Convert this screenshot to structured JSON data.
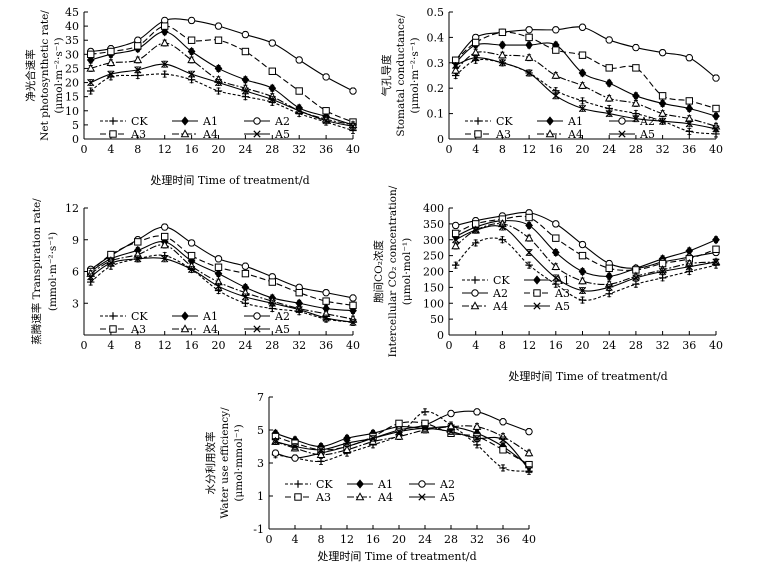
{
  "figure": {
    "xlabel_p1": "处理时间 Time of treatment/d",
    "xlabel_p3": "处理时间 Time of treatment/d",
    "xlabel_p5": "处理时间 Time of treatment/d"
  },
  "colors": {
    "ink": "#000000",
    "background": "#ffffff"
  },
  "chart_data": [
    {
      "type": "line",
      "title": "",
      "ylabel_lines": [
        "净光合速率",
        "Net photosynthetic rate/",
        "(μmol·m⁻²·s⁻¹)"
      ],
      "xlabel": "处理时间 Time of treatment/d",
      "x": [
        1,
        4,
        8,
        12,
        16,
        20,
        24,
        28,
        32,
        36,
        40
      ],
      "xticks": [
        0,
        4,
        8,
        12,
        16,
        20,
        24,
        28,
        32,
        36,
        40
      ],
      "xlim": [
        0,
        40
      ],
      "ylim": [
        0,
        45
      ],
      "yticks": [
        0,
        5,
        10,
        15,
        20,
        25,
        30,
        35,
        40,
        45
      ],
      "legend_layout": [
        [
          "CK",
          "A1",
          "A2"
        ],
        [
          "A3",
          "A4",
          "A5"
        ]
      ],
      "series": [
        {
          "name": "CK",
          "values": [
            17,
            22,
            22.5,
            23,
            21,
            17,
            15,
            13,
            9,
            6,
            3
          ]
        },
        {
          "name": "A1",
          "values": [
            28,
            30,
            32,
            38,
            31,
            25,
            21,
            18,
            11,
            8,
            5
          ]
        },
        {
          "name": "A2",
          "values": [
            31,
            32,
            35,
            42,
            42,
            40,
            37,
            34,
            28,
            22,
            17
          ]
        },
        {
          "name": "A3",
          "values": [
            30,
            31,
            33,
            40,
            35,
            35,
            31,
            24,
            17,
            10,
            6
          ]
        },
        {
          "name": "A4",
          "values": [
            25,
            27,
            28,
            34,
            28,
            21,
            18,
            15,
            10,
            7,
            5
          ]
        },
        {
          "name": "A5",
          "values": [
            20,
            23,
            24.5,
            26.5,
            23,
            20,
            17,
            14,
            10,
            6.5,
            4.5
          ]
        }
      ]
    },
    {
      "type": "line",
      "title": "",
      "ylabel_lines": [
        "气孔导度",
        "Stomatal conductance/",
        "(μmol·m⁻²·s⁻¹)"
      ],
      "xlabel": "",
      "x": [
        1,
        4,
        8,
        12,
        16,
        20,
        24,
        28,
        32,
        36,
        40
      ],
      "xticks": [
        0,
        4,
        8,
        12,
        16,
        20,
        24,
        28,
        32,
        36,
        40
      ],
      "xlim": [
        0,
        40
      ],
      "ylim": [
        0,
        0.5
      ],
      "yticks": [
        0,
        0.1,
        0.2,
        0.3,
        0.4,
        0.5
      ],
      "legend_layout": [
        [
          "CK",
          "A1",
          "A2"
        ],
        [
          "A3",
          "A4",
          "A5"
        ]
      ],
      "series": [
        {
          "name": "CK",
          "values": [
            0.25,
            0.31,
            0.3,
            0.26,
            0.19,
            0.15,
            0.12,
            0.1,
            0.07,
            0.03,
            0.02
          ]
        },
        {
          "name": "A1",
          "values": [
            0.3,
            0.37,
            0.37,
            0.37,
            0.37,
            0.26,
            0.22,
            0.17,
            0.14,
            0.12,
            0.09
          ]
        },
        {
          "name": "A2",
          "values": [
            0.31,
            0.4,
            0.42,
            0.43,
            0.43,
            0.44,
            0.39,
            0.36,
            0.34,
            0.32,
            0.24
          ]
        },
        {
          "name": "A3",
          "values": [
            0.31,
            0.38,
            0.42,
            0.4,
            0.35,
            0.33,
            0.28,
            0.28,
            0.17,
            0.15,
            0.12
          ]
        },
        {
          "name": "A4",
          "values": [
            0.27,
            0.34,
            0.33,
            0.32,
            0.25,
            0.21,
            0.16,
            0.14,
            0.1,
            0.08,
            0.05
          ]
        },
        {
          "name": "A5",
          "values": [
            0.29,
            0.32,
            0.3,
            0.26,
            0.17,
            0.12,
            0.1,
            0.08,
            0.07,
            0.06,
            0.04
          ]
        }
      ]
    },
    {
      "type": "line",
      "title": "",
      "ylabel_lines": [
        "蒸腾速率 Transpiration rate/",
        "(mmol·m⁻²·s⁻¹)"
      ],
      "xlabel": "处理时间 Time of treatment/d",
      "x": [
        1,
        4,
        8,
        12,
        16,
        20,
        24,
        28,
        32,
        36,
        40
      ],
      "xticks": [
        0,
        4,
        8,
        12,
        16,
        20,
        24,
        28,
        32,
        36,
        40
      ],
      "xlim": [
        0,
        40
      ],
      "ylim": [
        0,
        12
      ],
      "yticks": [
        3,
        6,
        9,
        12
      ],
      "legend_layout": [
        [
          "CK",
          "A1",
          "A2"
        ],
        [
          "A3",
          "A4",
          "A5"
        ]
      ],
      "series": [
        {
          "name": "CK",
          "values": [
            5.0,
            6.5,
            7.2,
            7.5,
            6.2,
            4.2,
            3.0,
            2.5,
            2.2,
            1.5,
            1.2
          ]
        },
        {
          "name": "A1",
          "values": [
            6.0,
            7.2,
            8.0,
            8.8,
            7.0,
            5.8,
            4.5,
            3.5,
            3.0,
            2.5,
            2.3
          ]
        },
        {
          "name": "A2",
          "values": [
            6.2,
            7.5,
            9.0,
            10.2,
            8.7,
            7.2,
            6.5,
            5.5,
            4.5,
            4.0,
            3.5
          ]
        },
        {
          "name": "A3",
          "values": [
            6.0,
            7.6,
            8.8,
            9.3,
            7.5,
            6.4,
            5.8,
            5.0,
            4.0,
            3.2,
            2.8
          ]
        },
        {
          "name": "A4",
          "values": [
            5.8,
            7.0,
            7.6,
            8.5,
            6.5,
            5.0,
            4.0,
            3.2,
            2.5,
            2.0,
            1.5
          ]
        },
        {
          "name": "A5",
          "values": [
            5.5,
            6.8,
            7.2,
            7.2,
            6.2,
            4.6,
            3.6,
            3.0,
            2.4,
            1.6,
            1.2
          ]
        }
      ]
    },
    {
      "type": "line",
      "title": "",
      "ylabel_lines": [
        "胞间CO₂浓度",
        "Intercellular CO₂ concentration/",
        "(μmol·mol⁻¹)"
      ],
      "xlabel": "",
      "x": [
        1,
        4,
        8,
        12,
        16,
        20,
        24,
        28,
        32,
        36,
        40
      ],
      "xticks": [
        0,
        4,
        8,
        12,
        16,
        20,
        24,
        28,
        32,
        36,
        40
      ],
      "xlim": [
        0,
        40
      ],
      "ylim": [
        0,
        400
      ],
      "yticks": [
        0,
        50,
        100,
        150,
        200,
        250,
        300,
        350,
        400
      ],
      "legend_layout": [
        [
          "CK",
          "A1"
        ],
        [
          "A2",
          "A3"
        ],
        [
          "A4",
          "A5"
        ]
      ],
      "series": [
        {
          "name": "CK",
          "values": [
            220,
            290,
            300,
            220,
            160,
            110,
            130,
            160,
            180,
            200,
            220
          ]
        },
        {
          "name": "A1",
          "values": [
            310,
            340,
            360,
            345,
            260,
            200,
            185,
            210,
            240,
            265,
            300
          ]
        },
        {
          "name": "A2",
          "values": [
            345,
            360,
            375,
            385,
            350,
            285,
            225,
            210,
            230,
            245,
            260
          ]
        },
        {
          "name": "A3",
          "values": [
            320,
            350,
            365,
            370,
            305,
            250,
            210,
            205,
            225,
            240,
            270
          ]
        },
        {
          "name": "A4",
          "values": [
            280,
            330,
            350,
            305,
            215,
            170,
            160,
            185,
            205,
            225,
            230
          ]
        },
        {
          "name": "A5",
          "values": [
            300,
            330,
            340,
            260,
            180,
            140,
            150,
            180,
            200,
            215,
            230
          ]
        }
      ]
    },
    {
      "type": "line",
      "title": "",
      "ylabel_lines": [
        "水分利用效率",
        "Water use efficiency/",
        "(μmol·mmol⁻¹)"
      ],
      "xlabel": "处理时间 Time of treatment/d",
      "x": [
        1,
        4,
        8,
        12,
        16,
        20,
        24,
        28,
        32,
        36,
        40
      ],
      "xticks": [
        0,
        4,
        8,
        12,
        16,
        20,
        24,
        28,
        32,
        36,
        40
      ],
      "xlim": [
        0,
        40
      ],
      "ylim": [
        -1,
        7
      ],
      "yticks": [
        -1,
        1,
        3,
        5,
        7
      ],
      "legend_layout": [
        [
          "CK",
          "A1",
          "A2"
        ],
        [
          "A3",
          "A4",
          "A5"
        ]
      ],
      "series": [
        {
          "name": "CK",
          "values": [
            3.5,
            3.3,
            3.1,
            3.6,
            4.1,
            4.7,
            6.1,
            5.3,
            4.1,
            2.7,
            2.5
          ]
        },
        {
          "name": "A1",
          "values": [
            4.8,
            4.4,
            4.0,
            4.5,
            4.8,
            5.2,
            5.1,
            5.2,
            4.8,
            4.0,
            2.8
          ]
        },
        {
          "name": "A2",
          "values": [
            3.6,
            3.3,
            3.6,
            4.0,
            4.5,
            5.0,
            5.3,
            6.0,
            6.1,
            5.5,
            4.9
          ]
        },
        {
          "name": "A3",
          "values": [
            4.6,
            4.2,
            3.8,
            4.0,
            4.6,
            5.4,
            5.4,
            4.8,
            4.6,
            3.8,
            2.9
          ]
        },
        {
          "name": "A4",
          "values": [
            4.3,
            3.9,
            3.5,
            3.8,
            4.3,
            4.6,
            5.0,
            5.2,
            5.2,
            4.6,
            3.6
          ]
        },
        {
          "name": "A5",
          "values": [
            4.3,
            4.0,
            3.8,
            4.2,
            4.5,
            4.9,
            5.1,
            4.9,
            4.5,
            4.4,
            2.6
          ]
        }
      ]
    }
  ]
}
